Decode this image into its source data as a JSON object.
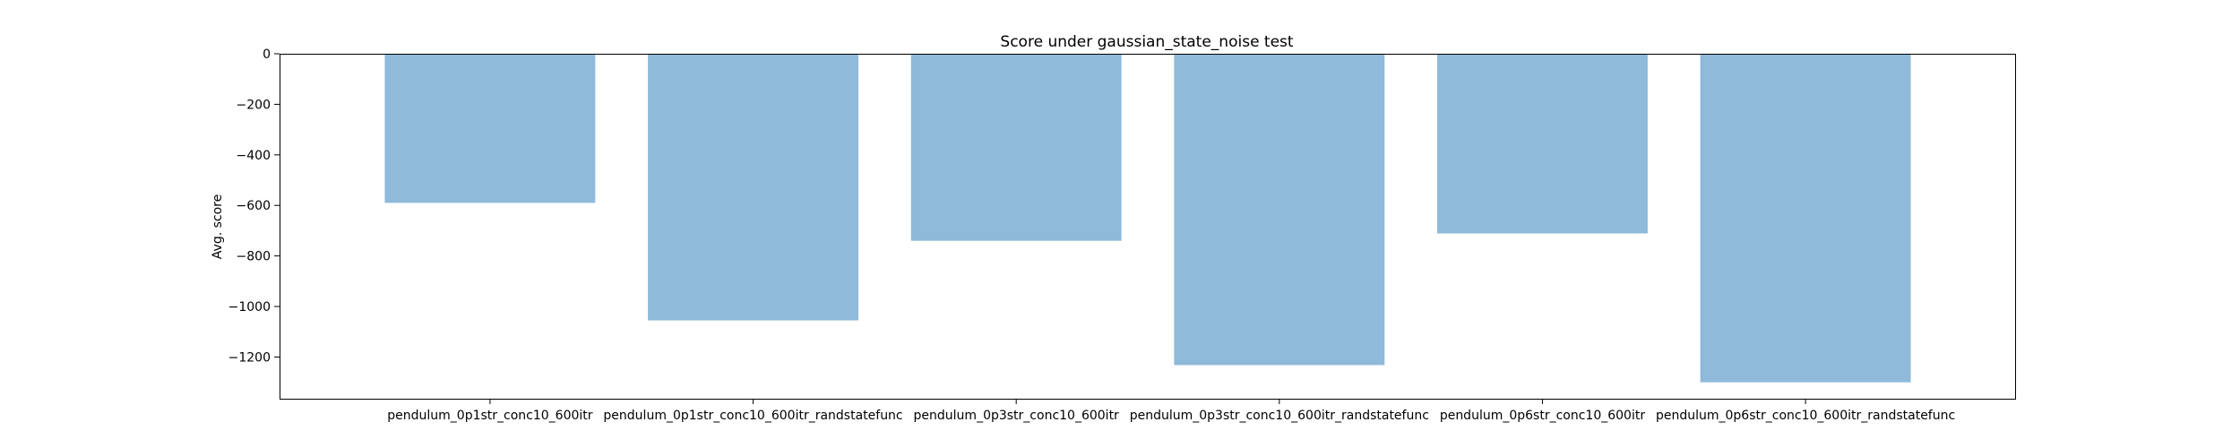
{
  "chart_data": {
    "type": "bar",
    "title": "Score under gaussian_state_noise test",
    "xlabel": "",
    "ylabel": "Avg. score",
    "categories": [
      "pendulum_0p1str_conc10_600itr",
      "pendulum_0p1str_conc10_600itr_randstatefunc",
      "pendulum_0p3str_conc10_600itr",
      "pendulum_0p3str_conc10_600itr_randstatefunc",
      "pendulum_0p6str_conc10_600itr",
      "pendulum_0p6str_conc10_600itr_randstatefunc"
    ],
    "values": [
      -590,
      -1055,
      -740,
      -1232,
      -711,
      -1300
    ],
    "ylim": [
      -1365,
      0
    ],
    "yticks": [
      0,
      -200,
      -400,
      -600,
      -800,
      -1000,
      -1200
    ],
    "ytick_labels": [
      "0",
      "−200",
      "−400",
      "−600",
      "−800",
      "−1000",
      "−1200"
    ],
    "grid": false,
    "legend": "none",
    "bar_color": "#8fbad9"
  }
}
